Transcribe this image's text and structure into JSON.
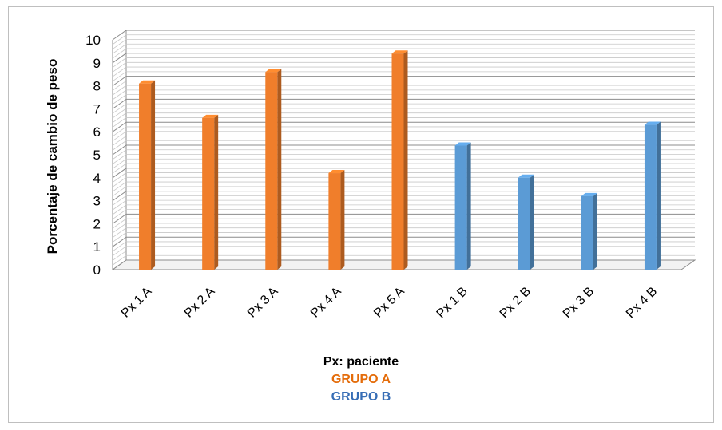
{
  "chart_data": {
    "type": "bar",
    "categories": [
      "Px 1 A",
      "Px 2 A",
      "Px 3 A",
      "Px 4 A",
      "Px 5 A",
      "Px 1 B",
      "Px 2 B",
      "Px 3 B",
      "Px 4 B"
    ],
    "values": [
      8.1,
      6.6,
      8.6,
      4.2,
      9.4,
      5.4,
      4.0,
      3.2,
      6.3
    ],
    "groups": [
      "A",
      "A",
      "A",
      "A",
      "A",
      "B",
      "B",
      "B",
      "B"
    ],
    "ylabel": "Porcentaje de cambio de peso",
    "ylim": [
      0,
      10
    ],
    "yticks": [
      0,
      1,
      2,
      3,
      4,
      5,
      6,
      7,
      8,
      9,
      10
    ],
    "grid": true,
    "style": "3d-column"
  },
  "legend": {
    "note": "Px: paciente",
    "group_a": "GRUPO A",
    "group_b": "GRUPO B"
  },
  "colors": {
    "group_a": "#F07E2B",
    "group_b": "#5B9BD5",
    "group_a_label": "#E46C0A",
    "group_b_label": "#366DB5"
  }
}
